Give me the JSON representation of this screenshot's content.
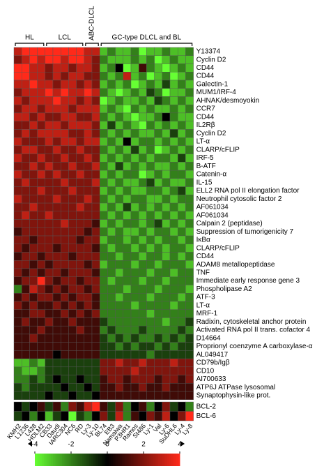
{
  "chart_data": {
    "type": "heatmap",
    "groups": [
      {
        "label": "HL",
        "columns": [
          0,
          3
        ]
      },
      {
        "label": "LCL",
        "columns": [
          4,
          8
        ]
      },
      {
        "label": "ABC-DLCL",
        "columns": [
          9,
          10
        ]
      },
      {
        "label": "GC-type DLCL and BL",
        "columns": [
          11,
          22
        ]
      }
    ],
    "columns": [
      "KMH2",
      "L1236",
      "L428",
      "HDLM2",
      "CB33",
      "Daudi",
      "IARC304",
      "NC6",
      "RD",
      "Ly-3",
      "Ly-10",
      "BL74",
      "EB3",
      "Namalwa",
      "P3HR1",
      "Ramos",
      "St486",
      "Ly-1",
      "Val",
      "Ly-6",
      "SuDHL6",
      "Ly-4",
      "Ly-8"
    ],
    "rows": [
      "Y13374",
      "Cyclin D2",
      "CD44",
      "CD44",
      "Galectin-1",
      "MUM1/IRF-4",
      "AHNAK/desmoyokin",
      "CCR7",
      "CD44",
      "IL2Rβ",
      "Cyclin D2",
      "LT-α",
      "CLARP/cFLIP",
      "IRF-5",
      "B-ATF",
      "Catenin-α",
      "IL-15",
      "ELL2 RNA pol II elongation factor",
      "Neutrophil cytosolic factor 2",
      "AF061034",
      "AF061034",
      "Calpain 2 (peptidase)",
      "Suppression of tumorigenicity 7",
      "IκBα",
      "CLARP/cFLIP",
      "CD44",
      "ADAM8 metallopeptidase",
      "TNF",
      "Immediate early response gene 3",
      "Phospholipase A2",
      "ATF-3",
      "LT-α",
      "MRF-1",
      "Radixin, cytoskeletal anchor protein",
      "Activated RNA pol II trans. cofactor 4",
      "D14664",
      "Proprionyl coenzyme A carboxylase-α",
      "AL049417",
      "CD79b/Igβ",
      "CD10",
      "AI700633",
      "ATP6J ATPase lysosomal",
      "Synaptophysin-like prot."
    ],
    "values": [
      [
        3,
        4,
        4,
        4,
        4,
        4,
        4,
        4,
        4,
        3,
        3,
        -3,
        -2,
        -3,
        -3,
        -2,
        -4,
        -3,
        -3,
        -2,
        -3,
        -3,
        -2
      ],
      [
        2,
        3,
        4,
        3,
        4,
        4,
        3,
        4,
        4,
        3,
        2,
        -2,
        -3,
        -3,
        -3,
        -2,
        -3,
        -2,
        -4,
        -3,
        -2,
        -3,
        -3
      ],
      [
        4,
        4,
        3,
        3,
        2,
        3,
        3,
        2,
        3,
        3,
        2,
        -3,
        -2,
        0,
        -4,
        -3,
        1,
        -2,
        -3,
        -4,
        -3,
        -2,
        -3
      ],
      [
        4,
        4,
        3,
        3,
        2,
        3,
        2,
        3,
        3,
        2,
        2,
        -2,
        -3,
        -2,
        3,
        -3,
        -2,
        -4,
        -3,
        -2,
        -4,
        -3,
        -2
      ],
      [
        3,
        3,
        4,
        3,
        3,
        2,
        3,
        3,
        2,
        3,
        2,
        -3,
        -2,
        -3,
        -2,
        -4,
        -3,
        -2,
        -3,
        -1,
        -3,
        -2,
        -3
      ],
      [
        2,
        3,
        3,
        3,
        4,
        3,
        4,
        3,
        3,
        4,
        3,
        -2,
        -3,
        -4,
        -3,
        -2,
        -3,
        -1,
        -2,
        -4,
        -3,
        -3,
        -2
      ],
      [
        3,
        2,
        3,
        3,
        3,
        4,
        3,
        3,
        2,
        3,
        2,
        -4,
        -3,
        -2,
        -3,
        -3,
        -2,
        -3,
        -1,
        -2,
        -3,
        -2,
        -3
      ],
      [
        2,
        3,
        3,
        2,
        3,
        3,
        3,
        2,
        3,
        3,
        3,
        -3,
        -2,
        -3,
        -4,
        -2,
        -3,
        -2,
        -3,
        -3,
        -2,
        -3,
        -2
      ],
      [
        3,
        3,
        2,
        3,
        2,
        2,
        3,
        3,
        2,
        2,
        3,
        -2,
        -3,
        -2,
        -3,
        -4,
        -3,
        -3,
        -2,
        0,
        -2,
        -3,
        -3
      ],
      [
        2,
        2,
        3,
        2,
        3,
        3,
        2,
        3,
        3,
        3,
        2,
        -3,
        -1,
        -3,
        -2,
        -3,
        -4,
        -2,
        -3,
        -2,
        -3,
        -2,
        -3
      ],
      [
        2,
        3,
        2,
        3,
        3,
        3,
        3,
        2,
        2,
        3,
        2,
        -2,
        -3,
        -2,
        -3,
        -2,
        -3,
        -3,
        -2,
        -3,
        -1,
        -3,
        -2
      ],
      [
        3,
        2,
        2,
        2,
        3,
        2,
        3,
        3,
        2,
        3,
        3,
        -3,
        -2,
        -3,
        0,
        -3,
        -2,
        -2,
        -3,
        -2,
        -3,
        -2,
        -3
      ],
      [
        2,
        3,
        3,
        2,
        2,
        3,
        2,
        2,
        3,
        2,
        2,
        -2,
        -3,
        -2,
        -3,
        -1,
        -3,
        -2,
        -4,
        -3,
        -2,
        -3,
        -2
      ],
      [
        3,
        2,
        2,
        3,
        2,
        2,
        3,
        2,
        2,
        3,
        2,
        -3,
        -2,
        -3,
        -2,
        -3,
        -2,
        -3,
        -2,
        -2,
        -3,
        -1,
        -3
      ],
      [
        2,
        2,
        3,
        2,
        3,
        2,
        2,
        3,
        2,
        2,
        3,
        -2,
        -3,
        -1,
        -3,
        -2,
        -3,
        -2,
        -3,
        -3,
        -2,
        -3,
        -2
      ],
      [
        3,
        2,
        2,
        3,
        2,
        3,
        2,
        2,
        3,
        2,
        2,
        -3,
        -2,
        -3,
        -2,
        -2,
        -4,
        -3,
        -2,
        -3,
        -2,
        -2,
        -3
      ],
      [
        2,
        3,
        2,
        2,
        2,
        2,
        3,
        2,
        2,
        2,
        3,
        -2,
        -3,
        -2,
        -3,
        -3,
        -2,
        -1,
        -3,
        -2,
        -3,
        -3,
        -2
      ],
      [
        2,
        2,
        2,
        3,
        2,
        2,
        2,
        3,
        2,
        2,
        2,
        -3,
        -2,
        -3,
        -2,
        -3,
        -3,
        -2,
        -2,
        -3,
        -2,
        -1,
        -3
      ],
      [
        3,
        2,
        2,
        2,
        2,
        3,
        2,
        2,
        2,
        3,
        2,
        -2,
        -3,
        -2,
        -3,
        -2,
        -2,
        -3,
        -3,
        -2,
        -3,
        -2,
        -2
      ],
      [
        2,
        2,
        3,
        2,
        2,
        2,
        2,
        2,
        3,
        2,
        2,
        -3,
        -2,
        -3,
        -1,
        -3,
        -2,
        -3,
        -2,
        -3,
        -2,
        -3,
        -2
      ],
      [
        2,
        3,
        2,
        2,
        3,
        2,
        2,
        2,
        2,
        2,
        2,
        -2,
        -3,
        -2,
        -3,
        -2,
        -3,
        -2,
        -3,
        -2,
        -3,
        -2,
        -3
      ],
      [
        2,
        2,
        2,
        2,
        2,
        2,
        3,
        2,
        2,
        2,
        1,
        -3,
        -2,
        -3,
        -2,
        -2,
        -3,
        -2,
        -1,
        -3,
        -2,
        -3,
        -2
      ],
      [
        1,
        2,
        2,
        2,
        2,
        2,
        2,
        2,
        2,
        1,
        2,
        -2,
        -3,
        -2,
        -3,
        -3,
        -2,
        -3,
        -2,
        -2,
        -3,
        -2,
        -3
      ],
      [
        2,
        2,
        1,
        2,
        2,
        2,
        2,
        2,
        1,
        2,
        2,
        -3,
        -2,
        -2,
        -3,
        -2,
        -3,
        -2,
        -3,
        -2,
        -2,
        -3,
        -2
      ],
      [
        2,
        1,
        2,
        2,
        2,
        1,
        2,
        2,
        2,
        2,
        1,
        -2,
        -3,
        -2,
        -2,
        -3,
        -2,
        -3,
        -2,
        -3,
        -2,
        -2,
        -3
      ],
      [
        1,
        2,
        2,
        1,
        2,
        2,
        2,
        1,
        2,
        2,
        2,
        -2,
        -2,
        -3,
        -2,
        -2,
        -3,
        -2,
        -2,
        -3,
        -2,
        -3,
        -2
      ],
      [
        2,
        2,
        1,
        2,
        1,
        2,
        2,
        2,
        2,
        1,
        2,
        -3,
        -2,
        -2,
        -2,
        -3,
        -2,
        -2,
        -3,
        -2,
        -2,
        -2,
        -3
      ],
      [
        2,
        1,
        2,
        1,
        2,
        2,
        1,
        2,
        2,
        2,
        1,
        -2,
        -2,
        -3,
        -2,
        -2,
        -2,
        -3,
        -2,
        -2,
        -3,
        -2,
        -2
      ],
      [
        1,
        2,
        2,
        4,
        2,
        1,
        2,
        2,
        1,
        2,
        2,
        -2,
        -3,
        -2,
        -2,
        -2,
        -3,
        -2,
        -2,
        -3,
        -2,
        -2,
        -2
      ],
      [
        -2,
        1,
        3,
        2,
        1,
        2,
        1,
        2,
        2,
        1,
        2,
        -2,
        -2,
        -2,
        -3,
        -2,
        -2,
        -2,
        -3,
        -2,
        -2,
        -2,
        -3
      ],
      [
        1,
        2,
        1,
        2,
        2,
        1,
        2,
        1,
        2,
        2,
        1,
        -2,
        -2,
        -3,
        -2,
        -2,
        -2,
        -3,
        -2,
        -2,
        -2,
        -3,
        -2
      ],
      [
        2,
        1,
        2,
        1,
        1,
        2,
        1,
        2,
        1,
        2,
        1,
        -2,
        -2,
        -2,
        -2,
        -3,
        -2,
        -2,
        -2,
        -2,
        -3,
        -2,
        -2
      ],
      [
        1,
        1,
        2,
        2,
        1,
        1,
        2,
        1,
        2,
        1,
        2,
        -2,
        -2,
        -2,
        -2,
        -2,
        -2,
        -3,
        -2,
        -2,
        -2,
        -2,
        -2
      ],
      [
        1,
        2,
        1,
        1,
        2,
        1,
        1,
        2,
        1,
        1,
        1,
        -1,
        -2,
        -2,
        -2,
        -2,
        -2,
        -2,
        -2,
        -3,
        -2,
        -2,
        -1
      ],
      [
        1,
        1,
        1,
        2,
        1,
        1,
        1,
        1,
        2,
        1,
        1,
        -2,
        -1,
        -2,
        -2,
        -2,
        -1,
        -2,
        -2,
        -2,
        -2,
        -1,
        -2
      ],
      [
        1,
        1,
        2,
        1,
        1,
        1,
        1,
        1,
        1,
        1,
        1,
        -1,
        -2,
        -1,
        -2,
        -1,
        -2,
        -2,
        -1,
        -2,
        -1,
        -2,
        -1
      ],
      [
        1,
        1,
        1,
        1,
        1,
        1,
        1,
        1,
        1,
        1,
        1,
        -1,
        -1,
        -2,
        -1,
        -2,
        -1,
        -1,
        -2,
        -1,
        -2,
        -1,
        -1
      ],
      [
        1,
        1,
        1,
        1,
        1,
        0,
        1,
        1,
        1,
        1,
        1,
        -1,
        -1,
        -1,
        -1,
        -1,
        -1,
        -2,
        -1,
        -1,
        -1,
        -1,
        -1
      ],
      [
        -3,
        -3,
        -2,
        -3,
        -1,
        -1,
        -1,
        -1,
        -1,
        -1,
        -1,
        2,
        2,
        3,
        2,
        2,
        3,
        2,
        2,
        2,
        3,
        2,
        2
      ],
      [
        -2,
        -3,
        -3,
        -2,
        -1,
        -1,
        -1,
        -1,
        -1,
        -1,
        -1,
        2,
        2,
        2,
        2,
        3,
        2,
        2,
        2,
        2,
        2,
        2,
        2
      ],
      [
        -2,
        -2,
        -1,
        -2,
        -1,
        0,
        -1,
        -1,
        0,
        -1,
        -1,
        1,
        2,
        2,
        1,
        2,
        2,
        2,
        1,
        2,
        2,
        1,
        2
      ],
      [
        -1,
        -2,
        -1,
        -1,
        -1,
        -1,
        0,
        -1,
        -1,
        0,
        -1,
        1,
        1,
        2,
        1,
        1,
        2,
        1,
        1,
        2,
        1,
        1,
        1
      ],
      [
        -1,
        -1,
        -1,
        -1,
        0,
        -1,
        -1,
        0,
        -1,
        -1,
        0,
        1,
        1,
        1,
        1,
        1,
        1,
        1,
        1,
        1,
        1,
        1,
        1
      ]
    ],
    "rows2": [
      "BCL-2",
      "BCL-6"
    ],
    "values2": [
      [
        0,
        -1,
        0,
        1,
        -1,
        1,
        -2,
        2,
        1,
        3,
        4,
        1,
        -1,
        2,
        -2,
        0,
        1,
        -2,
        0,
        2,
        -1,
        0,
        -2
      ],
      [
        -1,
        0,
        -2,
        0,
        -3,
        -1,
        0,
        -4,
        -1,
        -2,
        0,
        2,
        -1,
        3,
        -2,
        1,
        0,
        2,
        1,
        3,
        0,
        2,
        4
      ]
    ],
    "colors": [
      "#66ff33",
      "#000000",
      "#ff2a1a"
    ],
    "clim": [
      -4,
      4
    ],
    "colorbar_ticks": [
      -4,
      -2,
      0,
      2,
      4
    ]
  }
}
